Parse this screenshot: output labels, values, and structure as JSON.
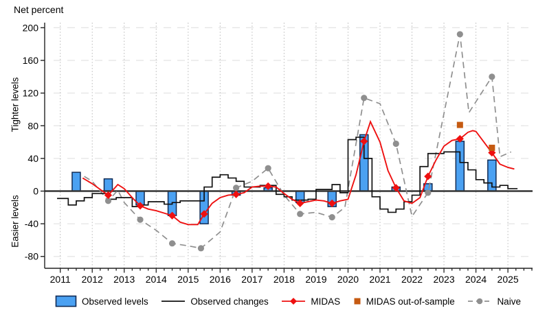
{
  "figure": {
    "y_axis_title": "Net percent",
    "y_label_tighter": "Tighter levels",
    "y_label_easier": "Easier levels"
  },
  "legend": {
    "items": [
      {
        "id": "observed-levels",
        "label": "Observed levels"
      },
      {
        "id": "observed-changes",
        "label": "Observed changes"
      },
      {
        "id": "midas",
        "label": "MIDAS"
      },
      {
        "id": "midas-oos",
        "label": "MIDAS out-of-sample"
      },
      {
        "id": "naive",
        "label": "Naive"
      }
    ]
  },
  "colors": {
    "bar_fill": "#4BA1F2",
    "bar_edge": "#102A54",
    "step_black": "#111111",
    "midas_red": "#EE1010",
    "oos_orange": "#C55A11",
    "naive_gray": "#8F8F8F",
    "grid_vertical": "#BBBBBB",
    "grid_horizontal": "#E4E4E4",
    "zero_line": "#333333",
    "axis": "#222222"
  },
  "chart_data": {
    "type": "combo: bar + step + line",
    "title": "",
    "xlabel": "",
    "ylabel": "Net percent",
    "x_axis": {
      "ticks": [
        2011,
        2012,
        2013,
        2014,
        2015,
        2016,
        2017,
        2018,
        2019,
        2020,
        2021,
        2022,
        2023,
        2024,
        2025
      ],
      "minor_ticks": "quarterly",
      "range": [
        2010.55,
        2025.8
      ]
    },
    "y_axis": {
      "ticks": [
        200,
        160,
        120,
        80,
        40,
        0,
        -40,
        -80
      ],
      "range": [
        -95,
        210
      ]
    },
    "series": {
      "observed_levels_bars": {
        "x": [
          2011.5,
          2012.5,
          2013.5,
          2014.5,
          2015.5,
          2016.5,
          2017.5,
          2018.5,
          2019.5,
          2020.5,
          2021.5,
          2022.5,
          2023.5,
          2024.5
        ],
        "values": [
          23,
          15,
          -17,
          -30,
          -40,
          -5,
          4,
          -14,
          -19,
          69,
          5,
          9,
          61,
          38
        ]
      },
      "observed_changes_step": {
        "points": [
          [
            2010.9,
            -9
          ],
          [
            2011.25,
            -17
          ],
          [
            2011.5,
            -12
          ],
          [
            2011.75,
            -8
          ],
          [
            2012.0,
            -3
          ],
          [
            2012.25,
            -3
          ],
          [
            2012.5,
            -10
          ],
          [
            2012.75,
            -8
          ],
          [
            2013.0,
            -8
          ],
          [
            2013.25,
            -19
          ],
          [
            2013.5,
            -17
          ],
          [
            2013.75,
            -13
          ],
          [
            2014.0,
            -13
          ],
          [
            2014.25,
            -16
          ],
          [
            2014.5,
            -14
          ],
          [
            2014.75,
            -12
          ],
          [
            2015.0,
            -12
          ],
          [
            2015.25,
            -12
          ],
          [
            2015.5,
            5
          ],
          [
            2015.75,
            17
          ],
          [
            2016.0,
            20
          ],
          [
            2016.25,
            16
          ],
          [
            2016.5,
            12
          ],
          [
            2016.75,
            5
          ],
          [
            2017.0,
            5
          ],
          [
            2017.25,
            7
          ],
          [
            2017.5,
            7
          ],
          [
            2017.75,
            -4
          ],
          [
            2018.0,
            -7
          ],
          [
            2018.25,
            -11
          ],
          [
            2018.5,
            -11
          ],
          [
            2018.75,
            -10
          ],
          [
            2019.0,
            2
          ],
          [
            2019.25,
            2
          ],
          [
            2019.5,
            8
          ],
          [
            2019.75,
            -2
          ],
          [
            2020.0,
            63
          ],
          [
            2020.25,
            66
          ],
          [
            2020.5,
            40
          ],
          [
            2020.75,
            -7
          ],
          [
            2021.0,
            -22
          ],
          [
            2021.25,
            -26
          ],
          [
            2021.5,
            -22
          ],
          [
            2021.75,
            -13
          ],
          [
            2022.0,
            -5
          ],
          [
            2022.25,
            30
          ],
          [
            2022.5,
            46
          ],
          [
            2022.75,
            46
          ],
          [
            2023.0,
            48
          ],
          [
            2023.25,
            48
          ],
          [
            2023.5,
            35
          ],
          [
            2023.75,
            26
          ],
          [
            2024.0,
            14
          ],
          [
            2024.25,
            10
          ],
          [
            2024.5,
            5
          ],
          [
            2024.75,
            7
          ],
          [
            2025.0,
            3
          ]
        ],
        "end_x": 2025.3
      },
      "midas_line": {
        "points": [
          [
            2011.7,
            16
          ],
          [
            2012.0,
            9
          ],
          [
            2012.25,
            2
          ],
          [
            2012.5,
            -5
          ],
          [
            2012.8,
            8
          ],
          [
            2013.0,
            3
          ],
          [
            2013.25,
            -8
          ],
          [
            2013.5,
            -18
          ],
          [
            2013.75,
            -22
          ],
          [
            2014.0,
            -24
          ],
          [
            2014.25,
            -27
          ],
          [
            2014.5,
            -30
          ],
          [
            2014.75,
            -38
          ],
          [
            2015.0,
            -41
          ],
          [
            2015.3,
            -41
          ],
          [
            2015.5,
            -28
          ],
          [
            2015.75,
            -15
          ],
          [
            2016.0,
            -8
          ],
          [
            2016.25,
            -5
          ],
          [
            2016.5,
            -4
          ],
          [
            2016.75,
            -2
          ],
          [
            2017.0,
            5
          ],
          [
            2017.25,
            6
          ],
          [
            2017.5,
            6
          ],
          [
            2017.75,
            5
          ],
          [
            2018.0,
            -3
          ],
          [
            2018.25,
            -10
          ],
          [
            2018.5,
            -15
          ],
          [
            2018.75,
            -13
          ],
          [
            2019.0,
            -11
          ],
          [
            2019.25,
            -12
          ],
          [
            2019.5,
            -15
          ],
          [
            2019.75,
            -12
          ],
          [
            2020.0,
            -10
          ],
          [
            2020.25,
            20
          ],
          [
            2020.5,
            61
          ],
          [
            2020.7,
            85
          ],
          [
            2021.0,
            60
          ],
          [
            2021.25,
            25
          ],
          [
            2021.5,
            4
          ],
          [
            2021.75,
            -12
          ],
          [
            2022.0,
            -15
          ],
          [
            2022.25,
            -8
          ],
          [
            2022.5,
            18
          ],
          [
            2022.75,
            38
          ],
          [
            2023.0,
            55
          ],
          [
            2023.25,
            62
          ],
          [
            2023.5,
            64
          ],
          [
            2023.75,
            72
          ],
          [
            2023.9,
            74
          ],
          [
            2024.0,
            73
          ],
          [
            2024.25,
            60
          ],
          [
            2024.5,
            47
          ],
          [
            2024.75,
            33
          ],
          [
            2025.0,
            29
          ],
          [
            2025.2,
            27
          ]
        ],
        "markers": [
          [
            2012.5,
            -5
          ],
          [
            2013.5,
            -18
          ],
          [
            2014.5,
            -30
          ],
          [
            2015.5,
            -28
          ],
          [
            2016.5,
            -4
          ],
          [
            2017.5,
            6
          ],
          [
            2018.5,
            -15
          ],
          [
            2019.5,
            -15
          ],
          [
            2020.5,
            61
          ],
          [
            2021.5,
            4
          ],
          [
            2022.5,
            18
          ],
          [
            2023.5,
            64
          ],
          [
            2024.5,
            47
          ]
        ]
      },
      "midas_out_of_sample": {
        "markers": [
          [
            2023.5,
            81
          ],
          [
            2024.5,
            53
          ]
        ]
      },
      "naive_line": {
        "points": [
          [
            2011.75,
            18
          ],
          [
            2012.0,
            12
          ],
          [
            2012.5,
            -12
          ],
          [
            2012.8,
            1
          ],
          [
            2013.0,
            -14
          ],
          [
            2013.5,
            -35
          ],
          [
            2014.0,
            -48
          ],
          [
            2014.5,
            -64
          ],
          [
            2015.0,
            -67
          ],
          [
            2015.4,
            -70
          ],
          [
            2016.0,
            -50
          ],
          [
            2016.5,
            4
          ],
          [
            2017.0,
            12
          ],
          [
            2017.5,
            28
          ],
          [
            2018.0,
            -5
          ],
          [
            2018.5,
            -28
          ],
          [
            2019.0,
            -26
          ],
          [
            2019.5,
            -32
          ],
          [
            2019.9,
            -20
          ],
          [
            2020.5,
            114
          ],
          [
            2021.0,
            107
          ],
          [
            2021.5,
            58
          ],
          [
            2022.0,
            -31
          ],
          [
            2022.5,
            -2
          ],
          [
            2023.5,
            192
          ],
          [
            2023.78,
            96
          ],
          [
            2024.5,
            140
          ],
          [
            2024.75,
            42
          ],
          [
            2025.1,
            48
          ]
        ],
        "markers": [
          [
            2012.5,
            -12
          ],
          [
            2013.5,
            -35
          ],
          [
            2014.5,
            -64
          ],
          [
            2015.4,
            -70
          ],
          [
            2016.5,
            4
          ],
          [
            2017.5,
            28
          ],
          [
            2018.5,
            -28
          ],
          [
            2019.5,
            -32
          ],
          [
            2020.5,
            114
          ],
          [
            2021.5,
            58
          ],
          [
            2022.5,
            -2
          ],
          [
            2023.5,
            192
          ],
          [
            2024.5,
            140
          ]
        ]
      }
    }
  }
}
